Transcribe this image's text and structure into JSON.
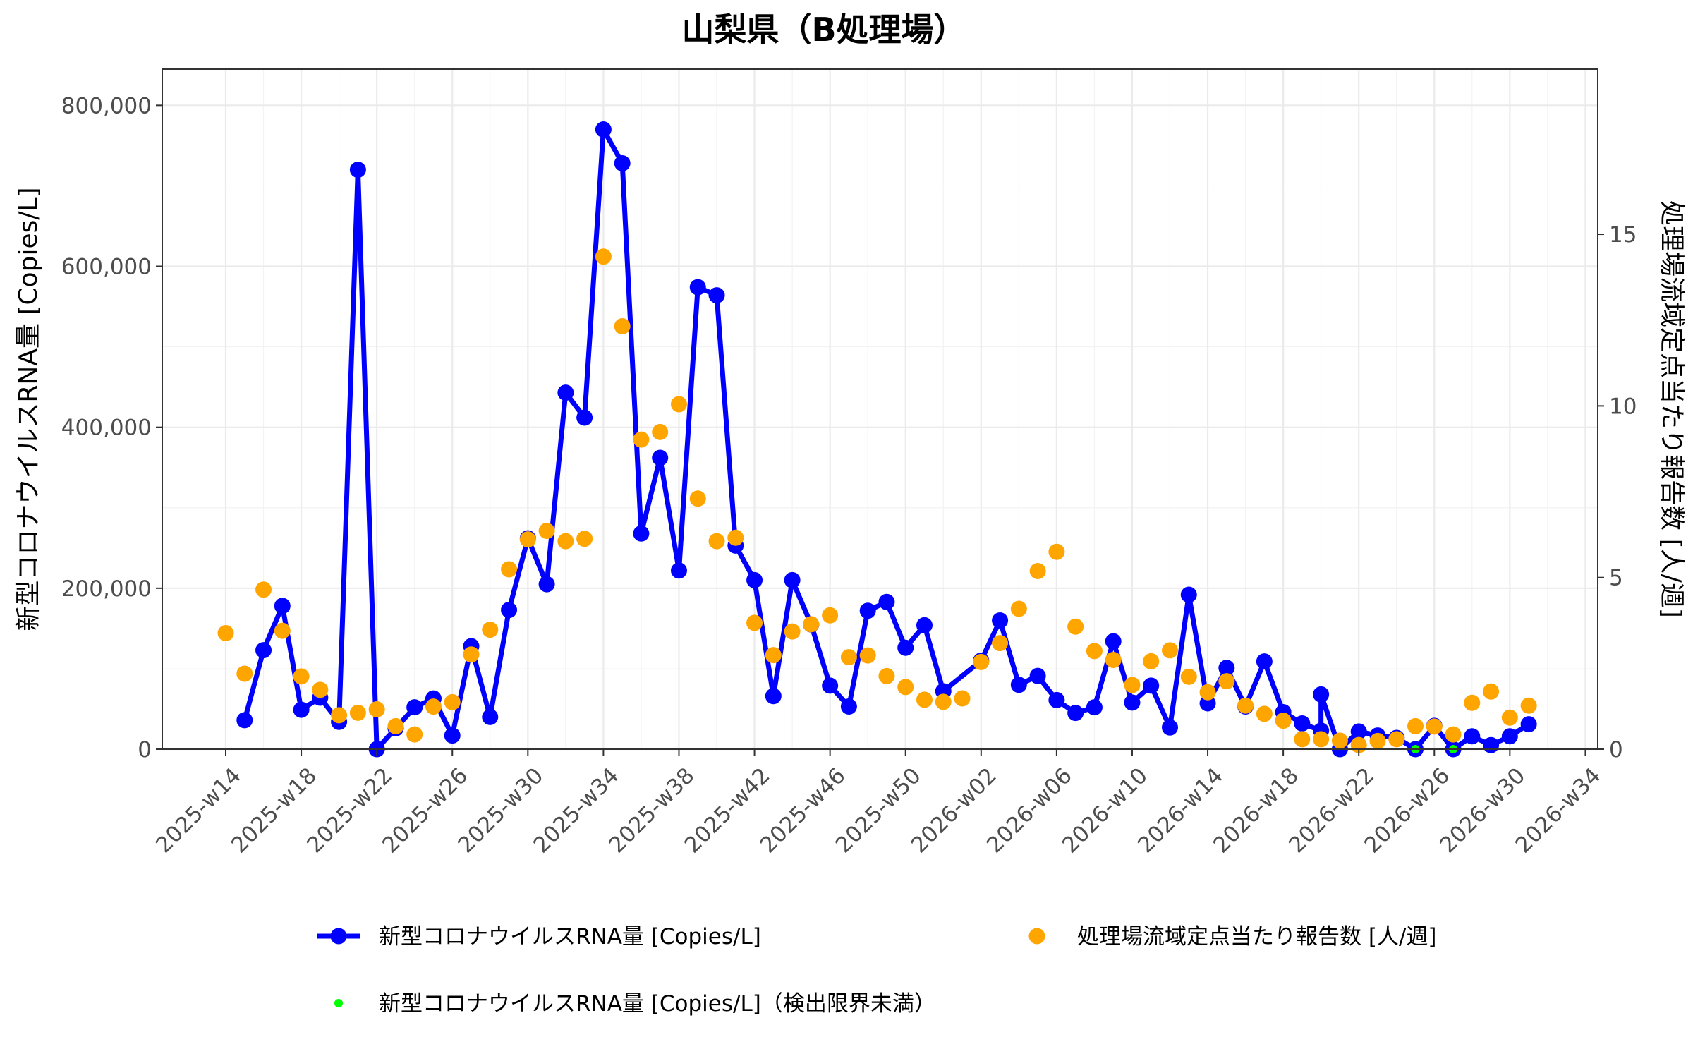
{
  "chart_data": {
    "type": "line",
    "title": "山梨県（B処理場）",
    "ylabel": "新型コロナウイルスRNA量 [Copies/L]",
    "y2label": "処理場流域定点当たり報告数 [人/週]",
    "ylim": [
      0,
      845000
    ],
    "y2lim": [
      0,
      19.81
    ],
    "yticks": [
      0,
      200000,
      400000,
      600000,
      800000
    ],
    "ytick_labels": [
      "0",
      "200,000",
      "400,000",
      "600,000",
      "800,000"
    ],
    "y2ticks": [
      0,
      5,
      10,
      15
    ],
    "y2tick_labels": [
      "0",
      "5",
      "10",
      "15"
    ],
    "x_categories": [
      "2025-w14",
      "2025-w15",
      "2025-w16",
      "2025-w17",
      "2025-w18",
      "2025-w19",
      "2025-w20",
      "2025-w21",
      "2025-w22",
      "2025-w23",
      "2025-w24",
      "2025-w25",
      "2025-w26",
      "2025-w27",
      "2025-w28",
      "2025-w29",
      "2025-w30",
      "2025-w31",
      "2025-w32",
      "2025-w33",
      "2025-w34",
      "2025-w35",
      "2025-w36",
      "2025-w37",
      "2025-w38",
      "2025-w39",
      "2025-w40",
      "2025-w41",
      "2025-w42",
      "2025-w43",
      "2025-w44",
      "2025-w45",
      "2025-w46",
      "2025-w47",
      "2025-w48",
      "2025-w49",
      "2025-w50",
      "2025-w51",
      "2025-w52",
      "2026-w01",
      "2026-w02",
      "2026-w03",
      "2026-w04",
      "2026-w05",
      "2026-w06",
      "2026-w07",
      "2026-w08",
      "2026-w09",
      "2026-w10",
      "2026-w11",
      "2026-w12",
      "2026-w13",
      "2026-w14",
      "2026-w15",
      "2026-w16",
      "2026-w17",
      "2026-w18",
      "2026-w19",
      "2026-w20",
      "2026-w21",
      "2026-w22",
      "2026-w23",
      "2026-w24",
      "2026-w25",
      "2026-w26",
      "2026-w27",
      "2026-w28",
      "2026-w29",
      "2026-w30",
      "2026-w31",
      "2026-w32",
      "2026-w33",
      "2026-w34"
    ],
    "x_tick_labels": [
      "2025-w14",
      "2025-w18",
      "2025-w22",
      "2025-w26",
      "2025-w30",
      "2025-w34",
      "2025-w38",
      "2025-w42",
      "2025-w46",
      "2025-w50",
      "2026-w02",
      "2026-w06",
      "2026-w10",
      "2026-w14",
      "2026-w18",
      "2026-w22",
      "2026-w26",
      "2026-w30",
      "2026-w34"
    ],
    "x_tick_index": [
      0,
      4,
      8,
      12,
      16,
      20,
      24,
      28,
      32,
      36,
      40,
      44,
      48,
      52,
      56,
      60,
      64,
      68,
      72
    ],
    "grid": true,
    "legend_position": "bottom",
    "series": [
      {
        "name": "新型コロナウイルスRNA量 [Copies/L]",
        "axis": "left",
        "color": "#0000ff",
        "style": "line-marker",
        "points": [
          [
            "2025-w15",
            36000
          ],
          [
            "2025-w16",
            123000
          ],
          [
            "2025-w17",
            178000
          ],
          [
            "2025-w18",
            49000
          ],
          [
            "2025-w19",
            64000
          ],
          [
            "2025-w20",
            34000
          ],
          [
            "2025-w21",
            720000
          ],
          [
            "2025-w22",
            0
          ],
          [
            "2025-w23",
            26000
          ],
          [
            "2025-w24",
            52000
          ],
          [
            "2025-w25",
            63000
          ],
          [
            "2025-w26",
            17000
          ],
          [
            "2025-w27",
            128000
          ],
          [
            "2025-w28",
            40000
          ],
          [
            "2025-w29",
            173000
          ],
          [
            "2025-w30",
            262000
          ],
          [
            "2025-w31",
            205000
          ],
          [
            "2025-w32",
            443000
          ],
          [
            "2025-w33",
            412000
          ],
          [
            "2025-w34",
            770000
          ],
          [
            "2025-w35",
            728000
          ],
          [
            "2025-w36",
            268000
          ],
          [
            "2025-w37",
            362000
          ],
          [
            "2025-w38",
            222000
          ],
          [
            "2025-w39",
            574000
          ],
          [
            "2025-w40",
            564000
          ],
          [
            "2025-w41",
            253000
          ],
          [
            "2025-w42",
            210000
          ],
          [
            "2025-w43",
            66000
          ],
          [
            "2025-w44",
            210000
          ],
          [
            "2025-w45",
            155000
          ],
          [
            "2025-w46",
            79000
          ],
          [
            "2025-w47",
            53000
          ],
          [
            "2025-w48",
            172000
          ],
          [
            "2025-w49",
            183000
          ],
          [
            "2025-w50",
            126000
          ],
          [
            "2025-w51",
            154000
          ],
          [
            "2025-w52",
            72000
          ],
          [
            "2026-w02",
            110000
          ],
          [
            "2026-w03",
            160000
          ],
          [
            "2026-w04",
            80000
          ],
          [
            "2026-w05",
            91000
          ],
          [
            "2026-w06",
            61000
          ],
          [
            "2026-w07",
            45000
          ],
          [
            "2026-w08",
            52000
          ],
          [
            "2026-w09",
            134000
          ],
          [
            "2026-w10",
            58000
          ],
          [
            "2026-w11",
            79000
          ],
          [
            "2026-w12",
            27000
          ],
          [
            "2026-w13",
            192000
          ],
          [
            "2026-w14",
            57000
          ],
          [
            "2026-w15",
            101000
          ],
          [
            "2026-w16",
            53000
          ],
          [
            "2026-w17",
            109000
          ],
          [
            "2026-w18",
            46000
          ],
          [
            "2026-w19",
            32000
          ],
          [
            "2026-w20",
            23000
          ],
          [
            "2026-w20",
            68000
          ],
          [
            "2026-w21",
            0
          ],
          [
            "2026-w22",
            22000
          ],
          [
            "2026-w23",
            17000
          ],
          [
            "2026-w24",
            14000
          ],
          [
            "2026-w25",
            0
          ],
          [
            "2026-w26",
            29000
          ],
          [
            "2026-w27",
            0
          ],
          [
            "2026-w28",
            16000
          ],
          [
            "2026-w29",
            5000
          ],
          [
            "2026-w30",
            16000
          ],
          [
            "2026-w31",
            31000
          ]
        ]
      },
      {
        "name": "処理場流域定点当たり報告数 [人/週]",
        "axis": "right",
        "color": "#ffa500",
        "style": "marker",
        "points": [
          [
            "2025-w14",
            3.38
          ],
          [
            "2025-w15",
            2.2
          ],
          [
            "2025-w16",
            4.65
          ],
          [
            "2025-w17",
            3.45
          ],
          [
            "2025-w18",
            2.12
          ],
          [
            "2025-w19",
            1.73
          ],
          [
            "2025-w20",
            0.99
          ],
          [
            "2025-w21",
            1.06
          ],
          [
            "2025-w22",
            1.16
          ],
          [
            "2025-w23",
            0.67
          ],
          [
            "2025-w24",
            0.43
          ],
          [
            "2025-w25",
            1.24
          ],
          [
            "2025-w26",
            1.37
          ],
          [
            "2025-w27",
            2.76
          ],
          [
            "2025-w28",
            3.48
          ],
          [
            "2025-w29",
            5.24
          ],
          [
            "2025-w30",
            6.11
          ],
          [
            "2025-w31",
            6.36
          ],
          [
            "2025-w32",
            6.06
          ],
          [
            "2025-w33",
            6.13
          ],
          [
            "2025-w34",
            14.35
          ],
          [
            "2025-w35",
            12.32
          ],
          [
            "2025-w36",
            9.02
          ],
          [
            "2025-w37",
            9.24
          ],
          [
            "2025-w38",
            10.05
          ],
          [
            "2025-w39",
            7.3
          ],
          [
            "2025-w40",
            6.06
          ],
          [
            "2025-w41",
            6.16
          ],
          [
            "2025-w42",
            3.68
          ],
          [
            "2025-w43",
            2.74
          ],
          [
            "2025-w44",
            3.43
          ],
          [
            "2025-w45",
            3.64
          ],
          [
            "2025-w46",
            3.9
          ],
          [
            "2025-w47",
            2.68
          ],
          [
            "2025-w48",
            2.73
          ],
          [
            "2025-w49",
            2.13
          ],
          [
            "2025-w50",
            1.81
          ],
          [
            "2025-w51",
            1.44
          ],
          [
            "2025-w52",
            1.38
          ],
          [
            "2026-w01",
            1.48
          ],
          [
            "2026-w02",
            2.54
          ],
          [
            "2026-w03",
            3.09
          ],
          [
            "2026-w04",
            4.09
          ],
          [
            "2026-w05",
            5.19
          ],
          [
            "2026-w06",
            5.75
          ],
          [
            "2026-w07",
            3.57
          ],
          [
            "2026-w08",
            2.86
          ],
          [
            "2026-w09",
            2.6
          ],
          [
            "2026-w10",
            1.87
          ],
          [
            "2026-w11",
            2.56
          ],
          [
            "2026-w12",
            2.88
          ],
          [
            "2026-w13",
            2.11
          ],
          [
            "2026-w14",
            1.66
          ],
          [
            "2026-w15",
            1.98
          ],
          [
            "2026-w16",
            1.27
          ],
          [
            "2026-w17",
            1.03
          ],
          [
            "2026-w18",
            0.83
          ],
          [
            "2026-w19",
            0.29
          ],
          [
            "2026-w20",
            0.29
          ],
          [
            "2026-w21",
            0.25
          ],
          [
            "2026-w22",
            0.12
          ],
          [
            "2026-w23",
            0.24
          ],
          [
            "2026-w24",
            0.29
          ],
          [
            "2026-w25",
            0.67
          ],
          [
            "2026-w26",
            0.66
          ],
          [
            "2026-w27",
            0.43
          ],
          [
            "2026-w28",
            1.35
          ],
          [
            "2026-w29",
            1.68
          ],
          [
            "2026-w30",
            0.92
          ],
          [
            "2026-w31",
            1.27
          ]
        ]
      },
      {
        "name": "新型コロナウイルスRNA量 [Copies/L]（検出限界未満）",
        "axis": "left",
        "color": "#00ff00",
        "style": "small-marker",
        "points": [
          [
            "2026-w25",
            0
          ],
          [
            "2026-w27",
            0
          ]
        ]
      }
    ]
  }
}
